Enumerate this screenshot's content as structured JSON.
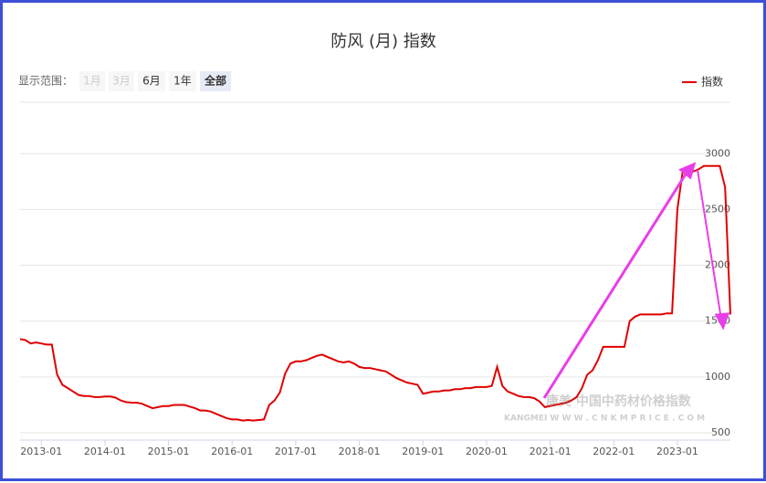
{
  "chart_data": {
    "type": "line",
    "title": "防风 (月) 指数",
    "range_label": "显示范围：",
    "range_buttons": [
      "1月",
      "3月",
      "6月",
      "1年",
      "全部"
    ],
    "watermark": [
      "康美 中国中药材价格指数",
      "KANGMEI  W W W . C N K M P R I C E . C O M"
    ],
    "x": [
      "2012-09",
      "2012-10",
      "2012-11",
      "2012-12",
      "2013-01",
      "2013-02",
      "2013-03",
      "2013-04",
      "2013-05",
      "2013-06",
      "2013-07",
      "2013-08",
      "2013-09",
      "2013-10",
      "2013-11",
      "2013-12",
      "2014-01",
      "2014-02",
      "2014-03",
      "2014-04",
      "2014-05",
      "2014-06",
      "2014-07",
      "2014-08",
      "2014-09",
      "2014-10",
      "2014-11",
      "2014-12",
      "2015-01",
      "2015-02",
      "2015-03",
      "2015-04",
      "2015-05",
      "2015-06",
      "2015-07",
      "2015-08",
      "2015-09",
      "2015-10",
      "2015-11",
      "2015-12",
      "2016-01",
      "2016-02",
      "2016-03",
      "2016-04",
      "2016-05",
      "2016-06",
      "2016-07",
      "2016-08",
      "2016-09",
      "2016-10",
      "2016-11",
      "2016-12",
      "2017-01",
      "2017-02",
      "2017-03",
      "2017-04",
      "2017-05",
      "2017-06",
      "2017-07",
      "2017-08",
      "2017-09",
      "2017-10",
      "2017-11",
      "2017-12",
      "2018-01",
      "2018-02",
      "2018-03",
      "2018-04",
      "2018-05",
      "2018-06",
      "2018-07",
      "2018-08",
      "2018-09",
      "2018-10",
      "2018-11",
      "2018-12",
      "2019-01",
      "2019-02",
      "2019-03",
      "2019-04",
      "2019-05",
      "2019-06",
      "2019-07",
      "2019-08",
      "2019-09",
      "2019-10",
      "2019-11",
      "2019-12",
      "2020-01",
      "2020-02",
      "2020-03",
      "2020-04",
      "2020-05",
      "2020-06",
      "2020-07",
      "2020-08",
      "2020-09",
      "2020-10",
      "2020-11",
      "2020-12",
      "2021-01",
      "2021-02",
      "2021-03",
      "2021-04",
      "2021-05",
      "2021-06",
      "2021-07",
      "2021-08",
      "2021-09",
      "2021-10",
      "2021-11",
      "2021-12",
      "2022-01",
      "2022-02",
      "2022-03",
      "2022-04",
      "2022-05",
      "2022-06",
      "2022-07",
      "2022-08",
      "2022-09",
      "2022-10",
      "2022-11",
      "2022-12",
      "2023-01",
      "2023-02",
      "2023-03",
      "2023-04",
      "2023-05",
      "2023-06",
      "2023-07",
      "2023-08",
      "2023-09",
      "2023-10",
      "2023-11"
    ],
    "series": [
      {
        "name": "指数",
        "color": "#e00000",
        "values": [
          1340,
          1330,
          1300,
          1310,
          1300,
          1290,
          1290,
          1020,
          930,
          900,
          870,
          840,
          830,
          830,
          820,
          820,
          825,
          825,
          815,
          790,
          775,
          770,
          770,
          760,
          740,
          720,
          730,
          740,
          740,
          750,
          750,
          750,
          735,
          720,
          700,
          700,
          690,
          670,
          650,
          630,
          620,
          620,
          610,
          615,
          610,
          615,
          620,
          750,
          790,
          860,
          1030,
          1120,
          1140,
          1140,
          1150,
          1170,
          1190,
          1200,
          1180,
          1160,
          1140,
          1130,
          1140,
          1120,
          1090,
          1080,
          1080,
          1070,
          1060,
          1050,
          1020,
          990,
          970,
          950,
          940,
          930,
          850,
          860,
          870,
          870,
          880,
          880,
          890,
          890,
          900,
          900,
          910,
          910,
          910,
          920,
          1090,
          920,
          870,
          850,
          830,
          820,
          820,
          810,
          780,
          730,
          740,
          750,
          760,
          770,
          790,
          820,
          900,
          1020,
          1060,
          1150,
          1270,
          1270,
          1270,
          1270,
          1270,
          1500,
          1540,
          1560,
          1560,
          1560,
          1560,
          1560,
          1570,
          1570,
          2500,
          2840,
          2840,
          2840,
          2860,
          2890,
          2890,
          2890,
          2890,
          2700,
          1560
        ]
      }
    ],
    "xticks": [
      "2013-01",
      "2014-01",
      "2015-01",
      "2016-01",
      "2017-01",
      "2018-01",
      "2019-01",
      "2020-01",
      "2021-01",
      "2022-01",
      "2023-01"
    ],
    "ylim": [
      435,
      3460
    ],
    "yticks": [
      500,
      1000,
      1500,
      2000,
      2500,
      3000
    ],
    "grid": true
  }
}
